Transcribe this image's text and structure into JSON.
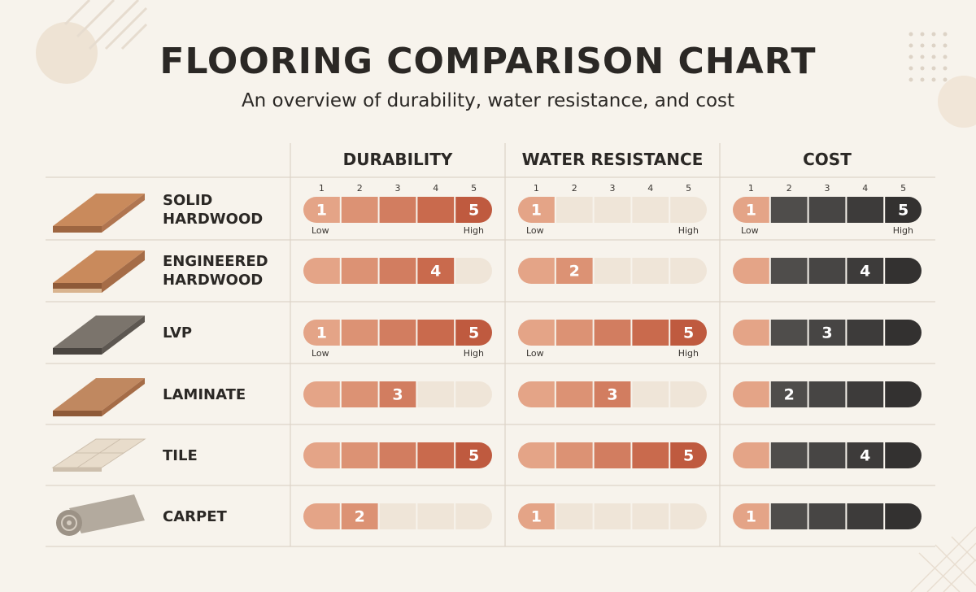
{
  "header": {
    "title": "FLOORING COMPARISON CHART",
    "subtitle": "An overview of durability, water resistance, and cost"
  },
  "columns": [
    "DURABILITY",
    "WATER RESISTANCE",
    "COST"
  ],
  "scale": [
    1,
    2,
    3,
    4,
    5
  ],
  "scale_ends": [
    "Low",
    "High"
  ],
  "rows": [
    {
      "name": "SOLID HARDWOOD",
      "ratings": [
        5,
        1,
        5
      ],
      "first_marked": [
        true,
        true,
        true
      ],
      "ends_shown": [
        true,
        true,
        true
      ],
      "scale_shown": true
    },
    {
      "name": "ENGINEERED HARDWOOD",
      "ratings": [
        4,
        2,
        4
      ],
      "first_marked": [
        false,
        false,
        false
      ],
      "ends_shown": [
        false,
        false,
        false
      ],
      "scale_shown": false
    },
    {
      "name": "LVP",
      "ratings": [
        5,
        5,
        3
      ],
      "first_marked": [
        true,
        false,
        false
      ],
      "ends_shown": [
        true,
        true,
        false
      ],
      "scale_shown": false
    },
    {
      "name": "LAMINATE",
      "ratings": [
        3,
        3,
        2
      ],
      "first_marked": [
        false,
        false,
        false
      ],
      "ends_shown": [
        false,
        false,
        false
      ],
      "scale_shown": false
    },
    {
      "name": "TILE",
      "ratings": [
        5,
        5,
        4
      ],
      "first_marked": [
        false,
        false,
        false
      ],
      "ends_shown": [
        false,
        false,
        false
      ],
      "scale_shown": false
    },
    {
      "name": "CARPET",
      "ratings": [
        2,
        1,
        1
      ],
      "first_marked": [
        false,
        true,
        true
      ],
      "ends_shown": [
        false,
        false,
        false
      ],
      "scale_shown": false
    }
  ]
}
